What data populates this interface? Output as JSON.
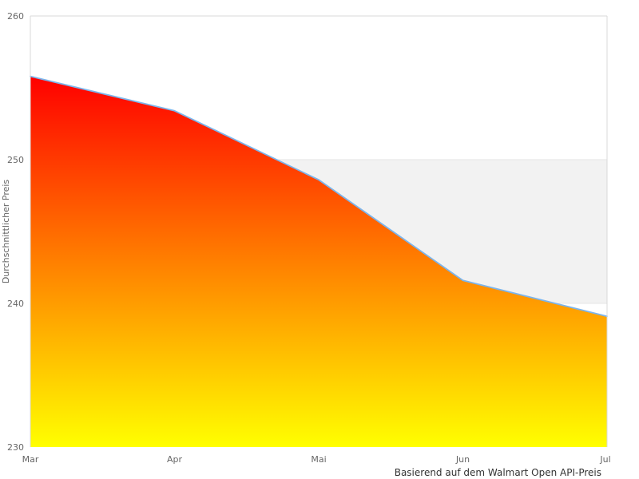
{
  "chart_data": {
    "type": "area",
    "categories": [
      "Mar",
      "Apr",
      "Mai",
      "Jun",
      "Jul"
    ],
    "series": [
      {
        "name": "Durchschnittlicher Preis",
        "values": [
          255.8,
          253.4,
          248.6,
          241.6,
          239.1
        ]
      }
    ],
    "title": "",
    "xlabel": "Basierend auf dem Walmart Open API-Preis",
    "ylabel": "Durchschnittlicher Preis",
    "ylim": [
      230,
      260
    ],
    "yticks": [
      230,
      240,
      250,
      260
    ],
    "plot_band": {
      "from": 240,
      "to": 250
    },
    "grid": "horizontal-ticks-only",
    "legend": "none",
    "colors": {
      "area_gradient_top": "#ff0000",
      "area_gradient_bottom": "#ffff00",
      "line": "#7cb5ec",
      "plot_band": "#f2f2f2",
      "gridline": "#e6e6e6",
      "plot_border": "#d8d8d8",
      "tick_label": "#666666",
      "axis_title": "#666666",
      "caption": "#333333",
      "background": "#ffffff"
    }
  }
}
